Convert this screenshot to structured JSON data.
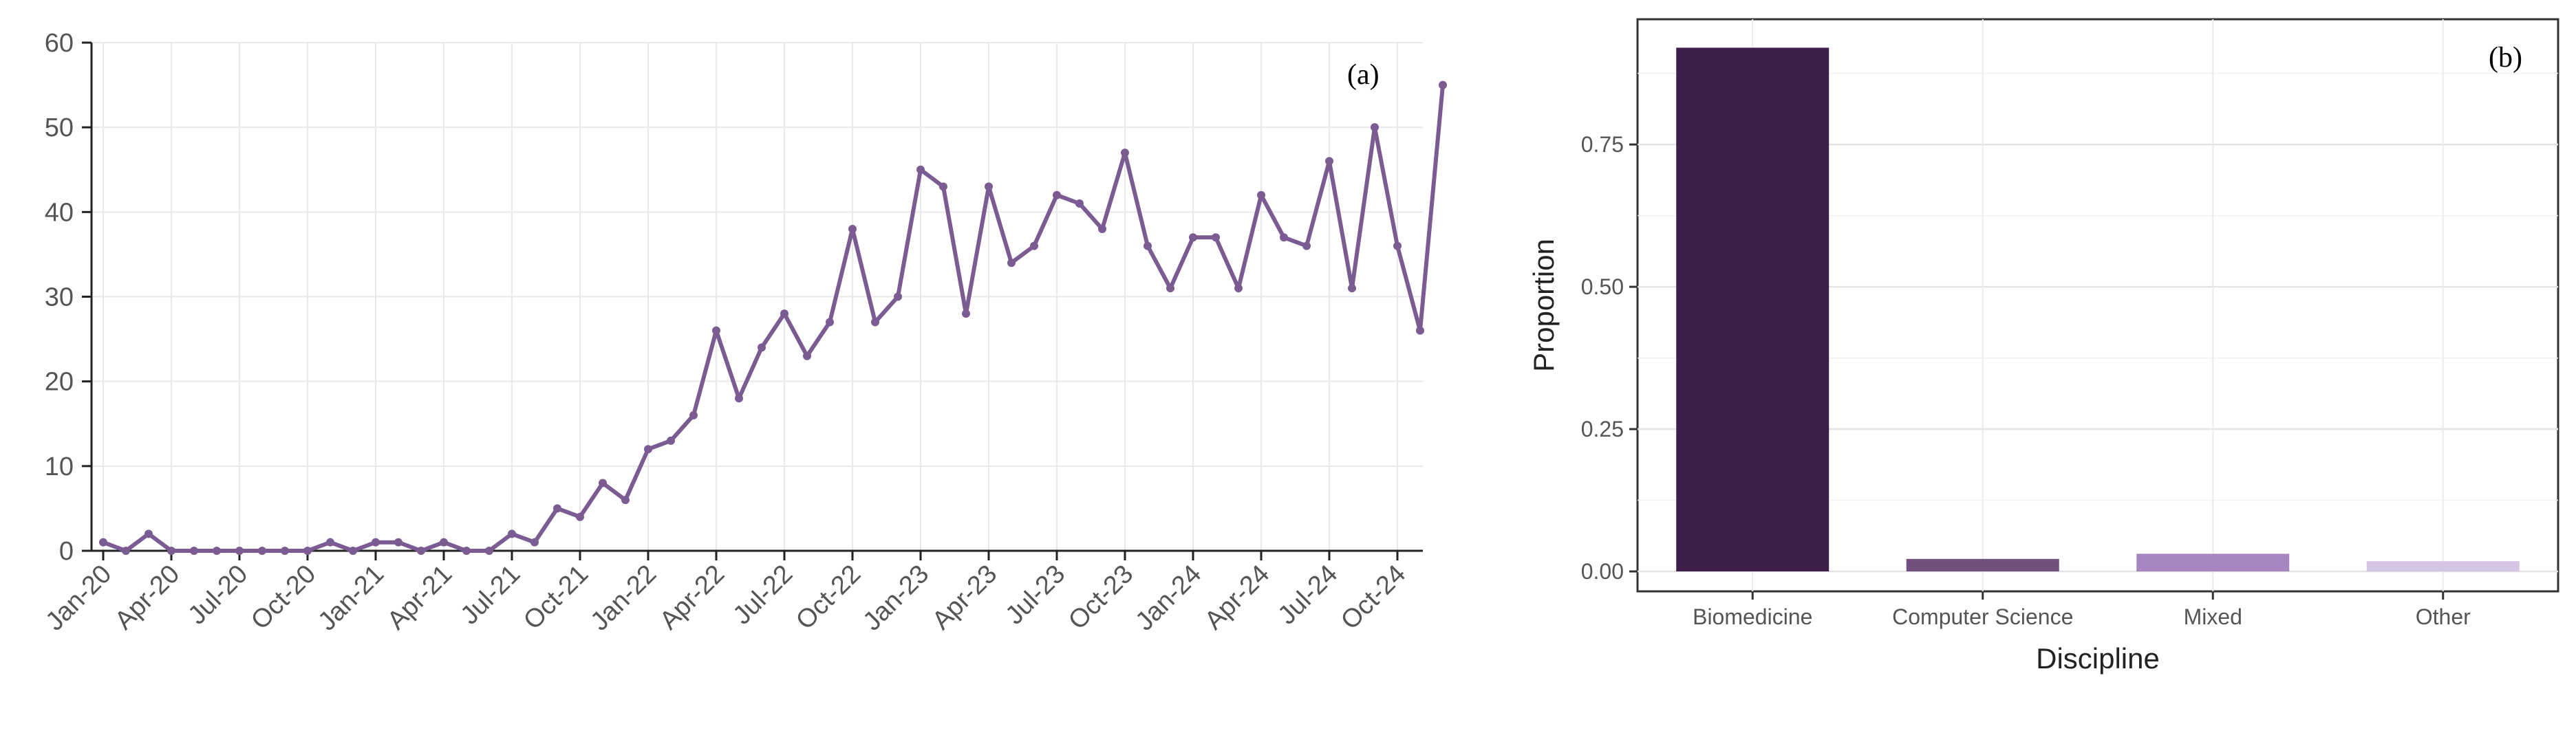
{
  "chart_data": [
    {
      "type": "line",
      "title": "",
      "panel_label": "(a)",
      "xlabel": "",
      "ylabel": "",
      "ylim": [
        0,
        60
      ],
      "y_ticks": [
        0,
        10,
        20,
        30,
        40,
        50,
        60
      ],
      "x_tick_labels": [
        "Jan-20",
        "Apr-20",
        "Jul-20",
        "Oct-20",
        "Jan-21",
        "Apr-21",
        "Jul-21",
        "Oct-21",
        "Jan-22",
        "Apr-22",
        "Jul-22",
        "Oct-22",
        "Jan-23",
        "Apr-23",
        "Jul-23",
        "Oct-23",
        "Jan-24",
        "Apr-24",
        "Jul-24",
        "Oct-24"
      ],
      "grid": true,
      "series": [
        {
          "color": "#7a5c93",
          "start_month": "Jan-20",
          "values": [
            1,
            0,
            2,
            0,
            0,
            0,
            0,
            0,
            0,
            0,
            1,
            0,
            1,
            1,
            0,
            1,
            0,
            0,
            2,
            1,
            5,
            4,
            8,
            6,
            12,
            13,
            16,
            26,
            18,
            24,
            28,
            23,
            27,
            38,
            27,
            30,
            45,
            43,
            28,
            43,
            34,
            36,
            42,
            41,
            38,
            47,
            36,
            31,
            37,
            37,
            31,
            42,
            37,
            36,
            46,
            31,
            50,
            36,
            26,
            55
          ]
        }
      ]
    },
    {
      "type": "bar",
      "title": "",
      "panel_label": "(b)",
      "xlabel": "Discipline",
      "ylabel": "Proportion",
      "ylim": [
        -0.035,
        0.97
      ],
      "y_ticks": [
        "0.00",
        "0.25",
        "0.50",
        "0.75"
      ],
      "categories": [
        "Biomedicine",
        "Computer Science",
        "Mixed",
        "Other"
      ],
      "values": [
        0.92,
        0.022,
        0.031,
        0.018
      ],
      "colors": [
        "#3c1f4b",
        "#71507f",
        "#a686c0",
        "#d6c5e5"
      ],
      "grid": true
    }
  ]
}
